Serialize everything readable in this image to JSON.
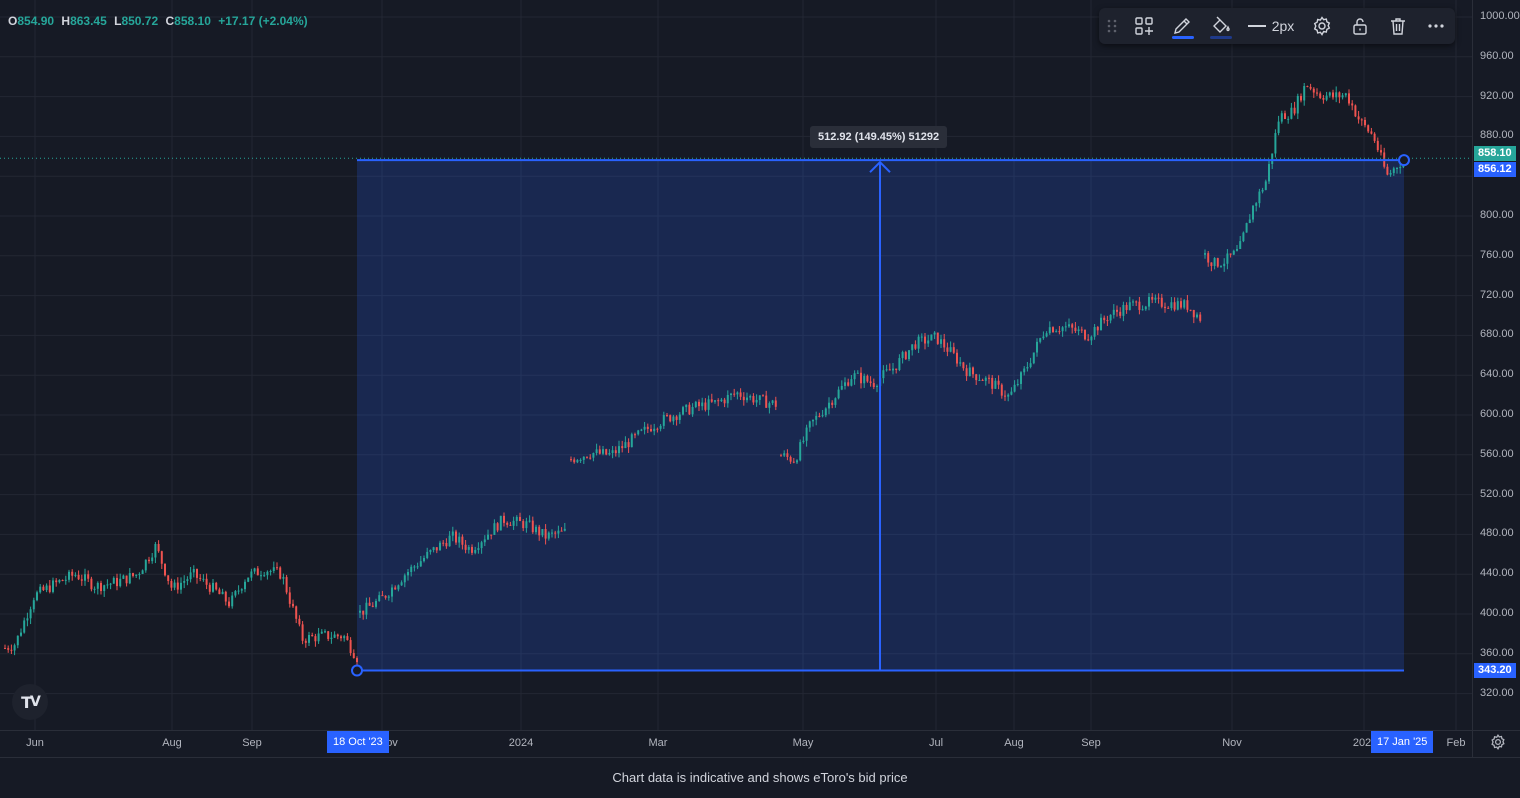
{
  "ohlc": {
    "open_key": "O",
    "open": "854.90",
    "high_key": "H",
    "high": "863.45",
    "low_key": "L",
    "low": "850.72",
    "close_key": "C",
    "close": "858.10",
    "change": "+17.17 (+2.04%)"
  },
  "toolbar": {
    "line_width_label": "2px"
  },
  "measure": {
    "label": "512.92 (149.45%) 51292",
    "start_price": 343.2,
    "end_price": 856.12,
    "start_date_label": "18 Oct '23",
    "end_date_label": "17 Jan '25"
  },
  "price_axis": {
    "ticks": [
      "1000.00",
      "960.00",
      "920.00",
      "880.00",
      "800.00",
      "760.00",
      "720.00",
      "680.00",
      "640.00",
      "600.00",
      "560.00",
      "520.00",
      "480.00",
      "440.00",
      "400.00",
      "360.00",
      "320.00"
    ],
    "current_price": "858.10",
    "measure_end_price": "856.12",
    "measure_start_price": "343.20"
  },
  "time_axis": {
    "ticks": [
      "Jun",
      "Aug",
      "Sep",
      "ov",
      "2024",
      "Mar",
      "May",
      "Jul",
      "Aug",
      "Sep",
      "Nov",
      "202",
      "Feb"
    ]
  },
  "colors": {
    "up": "#26a69a",
    "down": "#ef5350",
    "accent": "#2962ff",
    "measure_fill": "rgba(41,98,255,0.2)"
  },
  "icons": {
    "drag": "drag-handle-icon",
    "template": "template-icon",
    "pencil": "pencil-icon",
    "fill": "fill-bucket-icon",
    "line": "line-style-icon",
    "settings": "gear-icon",
    "lock": "unlock-icon",
    "delete": "trash-icon",
    "more": "more-icon"
  },
  "footer": {
    "note": "Chart data is indicative and shows eToro's bid price"
  },
  "chart_data": {
    "type": "candlestick",
    "y_range": [
      300,
      1000
    ],
    "x_label": "",
    "y_label": "",
    "grid": true,
    "segments": [
      {
        "from": "2023-05-22",
        "to": "2023-10-18",
        "approx_path": [
          [
            0,
            365
          ],
          [
            6,
            370
          ],
          [
            15,
            418
          ],
          [
            25,
            430
          ],
          [
            35,
            440
          ],
          [
            45,
            428
          ],
          [
            55,
            432
          ],
          [
            65,
            440
          ],
          [
            74,
            468
          ],
          [
            82,
            425
          ],
          [
            92,
            440
          ],
          [
            102,
            425
          ],
          [
            110,
            410
          ],
          [
            118,
            438
          ],
          [
            127,
            445
          ],
          [
            135,
            440
          ],
          [
            145,
            375
          ],
          [
            155,
            378
          ],
          [
            165,
            378
          ],
          [
            172,
            355
          ]
        ]
      },
      {
        "from": "2023-10-18",
        "to": "2024-02-05",
        "approx_path": [
          [
            0,
            400
          ],
          [
            10,
            415
          ],
          [
            20,
            440
          ],
          [
            30,
            460
          ],
          [
            40,
            478
          ],
          [
            48,
            465
          ],
          [
            55,
            480
          ],
          [
            62,
            495
          ],
          [
            72,
            490
          ],
          [
            80,
            478
          ],
          [
            90,
            483
          ]
        ]
      },
      {
        "from": "2024-02-06",
        "to": "2024-04-24",
        "approx_path": [
          [
            0,
            555
          ],
          [
            8,
            562
          ],
          [
            16,
            560
          ],
          [
            24,
            575
          ],
          [
            32,
            590
          ],
          [
            40,
            600
          ],
          [
            48,
            608
          ],
          [
            56,
            612
          ],
          [
            64,
            622
          ],
          [
            72,
            615
          ],
          [
            80,
            610
          ]
        ]
      },
      {
        "from": "2024-04-25",
        "to": "2024-10-21",
        "approx_path": [
          [
            0,
            560
          ],
          [
            6,
            555
          ],
          [
            12,
            590
          ],
          [
            20,
            615
          ],
          [
            28,
            640
          ],
          [
            36,
            632
          ],
          [
            44,
            648
          ],
          [
            52,
            672
          ],
          [
            60,
            678
          ],
          [
            66,
            662
          ],
          [
            72,
            644
          ],
          [
            80,
            634
          ],
          [
            88,
            618
          ],
          [
            94,
            645
          ],
          [
            102,
            688
          ],
          [
            110,
            688
          ],
          [
            118,
            680
          ],
          [
            126,
            700
          ],
          [
            134,
            710
          ],
          [
            142,
            713
          ],
          [
            150,
            712
          ],
          [
            156,
            710
          ],
          [
            162,
            695
          ]
        ]
      },
      {
        "from": "2024-10-22",
        "to": "2025-01-17",
        "approx_path": [
          [
            0,
            763
          ],
          [
            5,
            752
          ],
          [
            10,
            755
          ],
          [
            16,
            765
          ],
          [
            22,
            808
          ],
          [
            28,
            835
          ],
          [
            34,
            900
          ],
          [
            40,
            905
          ],
          [
            46,
            933
          ],
          [
            52,
            922
          ],
          [
            58,
            920
          ],
          [
            64,
            922
          ],
          [
            70,
            895
          ],
          [
            76,
            880
          ],
          [
            82,
            840
          ],
          [
            86,
            850
          ],
          [
            90,
            858
          ]
        ]
      }
    ],
    "measure": {
      "from_price": 343.2,
      "to_price": 856.12,
      "change": 512.92,
      "change_pct": 149.45
    },
    "current_price": 858.1
  }
}
